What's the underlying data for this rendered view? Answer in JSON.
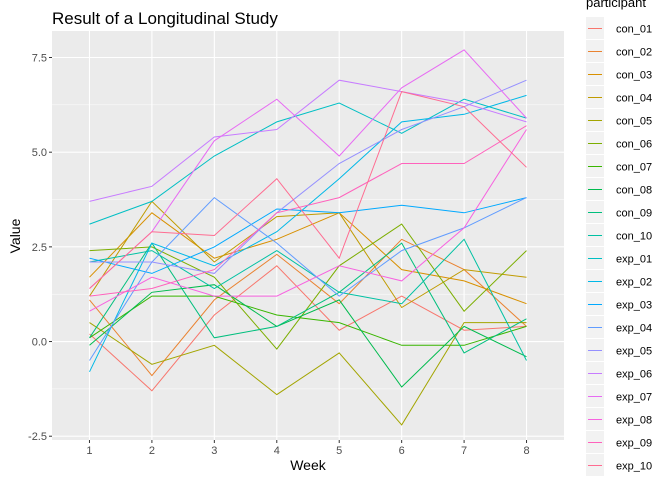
{
  "chart_data": {
    "type": "line",
    "title": "Result of a Longitudinal Study",
    "xlabel": "Week",
    "ylabel": "Value",
    "x": [
      1,
      2,
      3,
      4,
      5,
      6,
      7,
      8
    ],
    "xlim": [
      0.4,
      8.6
    ],
    "ylim": [
      -2.6,
      8.2
    ],
    "yticks": [
      -2.5,
      0.0,
      2.5,
      5.0,
      7.5
    ],
    "ytick_labels": [
      "-2.5",
      "0.0",
      "2.5",
      "5.0",
      "7.5"
    ],
    "grid": true,
    "legend": {
      "title": "participant",
      "position": "right"
    },
    "series": [
      {
        "name": "con_01",
        "color": "#F8766D",
        "values": [
          0.2,
          -1.3,
          0.7,
          2.0,
          0.3,
          1.2,
          0.3,
          0.4
        ]
      },
      {
        "name": "con_02",
        "color": "#EA8331",
        "values": [
          1.1,
          -0.9,
          1.1,
          2.3,
          1.0,
          2.7,
          1.9,
          0.4
        ]
      },
      {
        "name": "con_03",
        "color": "#D89000",
        "values": [
          1.7,
          3.4,
          2.2,
          2.7,
          3.4,
          1.9,
          1.6,
          1.0
        ]
      },
      {
        "name": "con_04",
        "color": "#C09B00",
        "values": [
          1.2,
          3.7,
          2.1,
          3.3,
          3.4,
          0.9,
          1.9,
          1.7
        ]
      },
      {
        "name": "con_05",
        "color": "#A3A500",
        "values": [
          0.5,
          -0.6,
          -0.1,
          -1.4,
          -0.3,
          -2.2,
          0.5,
          0.5
        ]
      },
      {
        "name": "con_06",
        "color": "#7CAE00",
        "values": [
          2.4,
          2.5,
          1.7,
          -0.2,
          2.0,
          3.1,
          0.8,
          2.4
        ]
      },
      {
        "name": "con_07",
        "color": "#39B600",
        "values": [
          0.1,
          1.2,
          1.2,
          0.7,
          0.5,
          -0.1,
          -0.1,
          0.4
        ]
      },
      {
        "name": "con_08",
        "color": "#00BB4E",
        "values": [
          -0.1,
          1.3,
          1.5,
          0.4,
          1.1,
          -1.2,
          0.4,
          -0.4
        ]
      },
      {
        "name": "con_09",
        "color": "#00BF7D",
        "values": [
          0.1,
          2.6,
          0.1,
          0.4,
          1.3,
          2.6,
          -0.3,
          0.6
        ]
      },
      {
        "name": "con_10",
        "color": "#00C1A3",
        "values": [
          2.1,
          2.4,
          1.4,
          2.4,
          1.3,
          1.0,
          2.7,
          -0.5
        ]
      },
      {
        "name": "exp_01",
        "color": "#00BFC4",
        "values": [
          3.1,
          3.7,
          4.9,
          5.8,
          6.3,
          5.5,
          6.4,
          5.9
        ]
      },
      {
        "name": "exp_02",
        "color": "#00B8E7",
        "values": [
          -0.8,
          2.6,
          2.0,
          2.9,
          4.3,
          5.8,
          6.0,
          6.5
        ]
      },
      {
        "name": "exp_03",
        "color": "#00A9FF",
        "values": [
          2.2,
          1.8,
          2.5,
          3.5,
          3.4,
          3.6,
          3.4,
          3.8
        ]
      },
      {
        "name": "exp_04",
        "color": "#619CFF",
        "values": [
          -0.5,
          2.1,
          3.8,
          2.6,
          1.2,
          2.4,
          3.0,
          3.8
        ]
      },
      {
        "name": "exp_05",
        "color": "#9590FF",
        "values": [
          2.1,
          2.1,
          1.8,
          3.4,
          4.7,
          5.6,
          6.2,
          6.9
        ]
      },
      {
        "name": "exp_06",
        "color": "#C77CFF",
        "values": [
          3.7,
          4.1,
          5.4,
          5.6,
          6.9,
          6.6,
          6.3,
          5.8
        ]
      },
      {
        "name": "exp_07",
        "color": "#E76BF3",
        "values": [
          1.4,
          2.9,
          5.3,
          6.4,
          4.9,
          6.7,
          7.7,
          5.9
        ]
      },
      {
        "name": "exp_08",
        "color": "#F763E0",
        "values": [
          0.8,
          1.7,
          1.2,
          1.2,
          2.0,
          1.6,
          3.0,
          5.6
        ]
      },
      {
        "name": "exp_09",
        "color": "#FF62BC",
        "values": [
          1.2,
          1.4,
          1.9,
          3.4,
          3.8,
          4.7,
          4.7,
          5.7
        ]
      },
      {
        "name": "exp_10",
        "color": "#FF6C91",
        "values": [
          1.4,
          2.9,
          2.8,
          4.3,
          2.2,
          6.6,
          6.2,
          4.6
        ]
      }
    ]
  }
}
